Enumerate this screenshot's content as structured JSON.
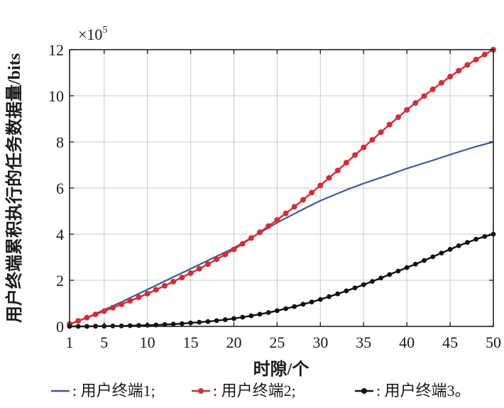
{
  "chart_data": {
    "type": "line",
    "title": "",
    "xlabel": "时隙/个",
    "ylabel": "用户终端累积执行的任务数据量/bits",
    "y_multiplier": "×10",
    "y_multiplier_exp": "5",
    "xlim": [
      1,
      50
    ],
    "ylim": [
      0,
      12
    ],
    "x_ticks": [
      1,
      5,
      10,
      15,
      20,
      25,
      30,
      35,
      40,
      45,
      50
    ],
    "y_ticks": [
      0,
      2,
      4,
      6,
      8,
      10,
      12
    ],
    "grid": true,
    "legend_position": "bottom",
    "series": [
      {
        "name": "用户终端1",
        "legend_label": "-: 用户终端1;",
        "color": "#3a5a9c",
        "marker": "none",
        "x": [
          1,
          3,
          5,
          7,
          10,
          13,
          15,
          18,
          20,
          22,
          25,
          28,
          30,
          33,
          35,
          38,
          40,
          43,
          45,
          48,
          50
        ],
        "values": [
          0.1,
          0.38,
          0.72,
          1.06,
          1.6,
          2.14,
          2.5,
          3.04,
          3.4,
          3.84,
          4.5,
          5.08,
          5.45,
          5.92,
          6.2,
          6.58,
          6.85,
          7.2,
          7.45,
          7.8,
          8.0
        ]
      },
      {
        "name": "用户终端2",
        "legend_label": "-•-: 用户终端2;",
        "color": "#d62c35",
        "marker": "circle",
        "x": [
          1,
          2,
          3,
          4,
          5,
          6,
          7,
          8,
          9,
          10,
          11,
          12,
          13,
          14,
          15,
          16,
          17,
          18,
          19,
          20,
          21,
          22,
          23,
          24,
          25,
          26,
          27,
          28,
          29,
          30,
          31,
          32,
          33,
          34,
          35,
          36,
          37,
          38,
          39,
          40,
          41,
          42,
          43,
          44,
          45,
          46,
          47,
          48,
          49,
          50
        ],
        "values": [
          0.1,
          0.24,
          0.38,
          0.52,
          0.66,
          0.81,
          0.96,
          1.11,
          1.26,
          1.42,
          1.59,
          1.76,
          1.94,
          2.12,
          2.31,
          2.5,
          2.7,
          2.91,
          3.12,
          3.34,
          3.58,
          3.83,
          4.08,
          4.35,
          4.62,
          4.9,
          5.19,
          5.49,
          5.8,
          6.11,
          6.44,
          6.76,
          7.1,
          7.43,
          7.76,
          8.09,
          8.42,
          8.75,
          9.07,
          9.39,
          9.69,
          9.99,
          10.28,
          10.56,
          10.83,
          11.09,
          11.34,
          11.57,
          11.79,
          12.0
        ]
      },
      {
        "name": "用户终端3",
        "legend_label": "-•-: 用户终端3。",
        "color": "#111111",
        "marker": "circle",
        "x": [
          1,
          2,
          3,
          4,
          5,
          6,
          7,
          8,
          9,
          10,
          11,
          12,
          13,
          14,
          15,
          16,
          17,
          18,
          19,
          20,
          21,
          22,
          23,
          24,
          25,
          26,
          27,
          28,
          29,
          30,
          31,
          32,
          33,
          34,
          35,
          36,
          37,
          38,
          39,
          40,
          41,
          42,
          43,
          44,
          45,
          46,
          47,
          48,
          49,
          50
        ],
        "values": [
          0.0,
          0.0,
          0.0,
          0.01,
          0.01,
          0.02,
          0.02,
          0.03,
          0.04,
          0.05,
          0.06,
          0.08,
          0.1,
          0.12,
          0.15,
          0.18,
          0.21,
          0.25,
          0.29,
          0.34,
          0.4,
          0.46,
          0.53,
          0.6,
          0.68,
          0.77,
          0.86,
          0.96,
          1.06,
          1.17,
          1.29,
          1.41,
          1.54,
          1.67,
          1.81,
          1.95,
          2.1,
          2.25,
          2.4,
          2.55,
          2.7,
          2.86,
          3.02,
          3.18,
          3.34,
          3.5,
          3.64,
          3.78,
          3.9,
          4.0
        ]
      }
    ]
  },
  "legend": {
    "sep": ": ",
    "items": [
      "用户终端1;",
      "用户终端2;",
      "用户终端3。"
    ]
  }
}
